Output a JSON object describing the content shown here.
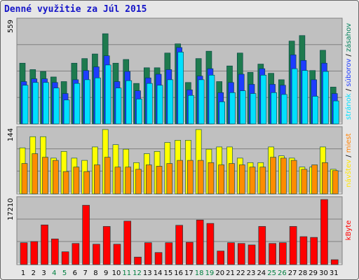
{
  "title": "Denné využitie za Júl 2015",
  "chart_data": [
    {
      "type": "bar",
      "title": "",
      "ylim": [
        0,
        559
      ],
      "ymax_label": "559",
      "legend": [
        {
          "name": "stránok",
          "color": "#00e0ff"
        },
        {
          "name": "súborov",
          "color": "#1e3cff"
        },
        {
          "name": "zásahov",
          "color": "#00805a"
        }
      ],
      "legend_separator": " / ",
      "series": [
        {
          "name": "zásahov",
          "color": "#1e7a4e",
          "values": [
            330,
            295,
            285,
            255,
            230,
            330,
            355,
            380,
            490,
            330,
            350,
            220,
            305,
            305,
            385,
            435,
            225,
            355,
            395,
            230,
            315,
            385,
            280,
            325,
            275,
            240,
            450,
            480,
            290,
            400,
            200
          ]
        },
        {
          "name": "súborov",
          "color": "#1e3cff",
          "values": [
            230,
            245,
            245,
            225,
            165,
            240,
            290,
            310,
            370,
            230,
            285,
            180,
            250,
            270,
            295,
            415,
            185,
            260,
            300,
            170,
            225,
            270,
            215,
            300,
            215,
            210,
            375,
            345,
            240,
            330,
            165
          ]
        },
        {
          "name": "stránok",
          "color": "#00e0ff",
          "values": [
            210,
            225,
            225,
            195,
            130,
            220,
            240,
            250,
            320,
            195,
            235,
            135,
            220,
            210,
            240,
            390,
            155,
            240,
            265,
            120,
            170,
            180,
            165,
            265,
            170,
            160,
            300,
            290,
            150,
            285,
            125
          ]
        }
      ]
    },
    {
      "type": "bar",
      "title": "",
      "ylim": [
        0,
        144
      ],
      "ymax_label": "144",
      "legend": [
        {
          "name": "návštev",
          "color": "#ffe400"
        },
        {
          "name": "miest",
          "color": "#ff8000"
        }
      ],
      "legend_separator": " / ",
      "series": [
        {
          "name": "návštev",
          "color": "#ffff00",
          "values": [
            103,
            128,
            128,
            80,
            95,
            80,
            75,
            105,
            144,
            110,
            100,
            70,
            90,
            95,
            115,
            120,
            120,
            144,
            100,
            105,
            105,
            80,
            70,
            70,
            105,
            85,
            80,
            60,
            60,
            105,
            55
          ]
        },
        {
          "name": "miest",
          "color": "#ff8c00",
          "values": [
            68,
            90,
            82,
            75,
            50,
            60,
            50,
            65,
            82,
            60,
            60,
            55,
            65,
            62,
            68,
            75,
            75,
            75,
            70,
            65,
            68,
            65,
            60,
            60,
            82,
            80,
            75,
            55,
            65,
            70,
            52
          ]
        }
      ]
    },
    {
      "type": "bar",
      "title": "",
      "ylim": [
        0,
        17210
      ],
      "ymax_label": "17210",
      "legend": [
        {
          "name": "kByte",
          "color": "#ff0000"
        }
      ],
      "series": [
        {
          "name": "kByte",
          "color": "#ff0000",
          "values": [
            5800,
            6100,
            10500,
            6800,
            3400,
            5600,
            15700,
            5400,
            10100,
            5400,
            11500,
            2000,
            5800,
            3200,
            5800,
            10400,
            5900,
            11800,
            10900,
            3600,
            5800,
            5600,
            5200,
            10100,
            5600,
            5800,
            10100,
            7400,
            7200,
            17210,
            1300
          ]
        }
      ]
    }
  ],
  "x_categories": [
    "1",
    "2",
    "3",
    "4",
    "5",
    "6",
    "7",
    "8",
    "9",
    "10",
    "11",
    "12",
    "13",
    "14",
    "15",
    "16",
    "17",
    "18",
    "19",
    "20",
    "21",
    "22",
    "23",
    "24",
    "25",
    "26",
    "27",
    "28",
    "29",
    "30",
    "31"
  ],
  "x_weekend_days": [
    "4",
    "5",
    "11",
    "12",
    "18",
    "19",
    "25",
    "26"
  ],
  "colors": {
    "title": "#1515c8",
    "panel_bg": "#c0c0c0",
    "frame_bg": "#e6e6e6",
    "weekday_label": "#000000",
    "weekend_label": "#008040",
    "bar_border": "#004040"
  }
}
